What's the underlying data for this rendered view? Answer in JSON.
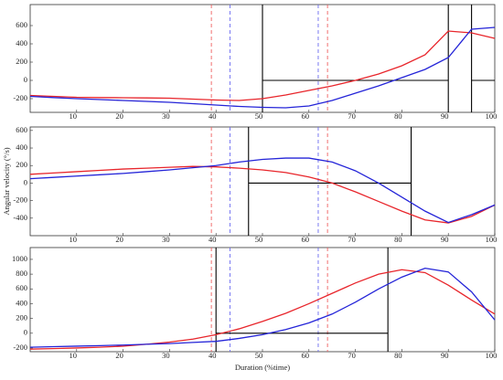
{
  "chart_data": [
    {
      "type": "line",
      "x": [
        0,
        5,
        10,
        15,
        20,
        25,
        30,
        35,
        40,
        45,
        50,
        55,
        60,
        65,
        70,
        75,
        80,
        85,
        90,
        95,
        100
      ],
      "series": [
        {
          "color": "#e8252b",
          "values": [
            -165,
            -175,
            -185,
            -188,
            -190,
            -192,
            -195,
            -205,
            -215,
            -220,
            -200,
            -160,
            -110,
            -60,
            0,
            70,
            160,
            280,
            540,
            520,
            460
          ]
        },
        {
          "color": "#2424d8",
          "values": [
            -175,
            -188,
            -200,
            -210,
            -220,
            -230,
            -240,
            -255,
            -270,
            -285,
            -295,
            -300,
            -280,
            -220,
            -140,
            -60,
            30,
            120,
            250,
            560,
            580
          ]
        }
      ],
      "vlines": [
        {
          "x": 39,
          "color": "#f06060",
          "dashed": true
        },
        {
          "x": 64,
          "color": "#f06060",
          "dashed": true
        },
        {
          "x": 43,
          "color": "#6a6af0",
          "dashed": true
        },
        {
          "x": 62,
          "color": "#6a6af0",
          "dashed": true
        },
        {
          "x": 50,
          "color": "#000000",
          "dashed": false
        },
        {
          "x": 90,
          "color": "#000000",
          "dashed": false
        },
        {
          "x": 95,
          "color": "#000000",
          "dashed": false
        }
      ],
      "hsegments": [
        {
          "x": [
            50,
            90
          ],
          "y": 0
        },
        {
          "x": [
            95,
            100
          ],
          "y": 0
        }
      ],
      "xlim": [
        0,
        100
      ],
      "xticks": [
        10,
        20,
        30,
        40,
        50,
        60,
        70,
        80,
        90,
        100
      ],
      "ylim": [
        -350,
        830
      ],
      "yticks": [
        -200,
        0,
        200,
        400,
        600
      ]
    },
    {
      "type": "line",
      "ylabel": "Angular velocity (°/s)",
      "x": [
        0,
        5,
        10,
        15,
        20,
        25,
        30,
        35,
        40,
        45,
        50,
        55,
        60,
        65,
        70,
        75,
        80,
        85,
        90,
        95,
        100
      ],
      "series": [
        {
          "color": "#e8252b",
          "values": [
            100,
            115,
            130,
            145,
            160,
            170,
            180,
            190,
            185,
            170,
            150,
            120,
            70,
            0,
            -100,
            -210,
            -320,
            -420,
            -455,
            -380,
            -250
          ]
        },
        {
          "color": "#2424d8",
          "values": [
            50,
            65,
            80,
            95,
            110,
            130,
            150,
            175,
            200,
            240,
            270,
            285,
            285,
            240,
            140,
            0,
            -160,
            -320,
            -450,
            -360,
            -250
          ]
        }
      ],
      "vlines": [
        {
          "x": 39,
          "color": "#f06060",
          "dashed": true
        },
        {
          "x": 64,
          "color": "#f06060",
          "dashed": true
        },
        {
          "x": 43,
          "color": "#6a6af0",
          "dashed": true
        },
        {
          "x": 62,
          "color": "#6a6af0",
          "dashed": true
        },
        {
          "x": 47,
          "color": "#000000",
          "dashed": false
        },
        {
          "x": 82,
          "color": "#000000",
          "dashed": false
        }
      ],
      "hsegments": [
        {
          "x": [
            47,
            82
          ],
          "y": 0
        }
      ],
      "xlim": [
        0,
        100
      ],
      "xticks": [
        10,
        20,
        30,
        40,
        50,
        60,
        70,
        80,
        90,
        100
      ],
      "ylim": [
        -600,
        640
      ],
      "yticks": [
        -400,
        -200,
        0,
        200,
        400,
        600
      ]
    },
    {
      "type": "line",
      "xlabel": "Duration (%time)",
      "x": [
        0,
        5,
        10,
        15,
        20,
        25,
        30,
        35,
        40,
        45,
        50,
        55,
        60,
        65,
        70,
        75,
        80,
        85,
        90,
        95,
        100
      ],
      "series": [
        {
          "color": "#e8252b",
          "values": [
            -215,
            -208,
            -200,
            -190,
            -175,
            -150,
            -120,
            -80,
            -20,
            60,
            160,
            270,
            400,
            540,
            680,
            800,
            860,
            820,
            650,
            450,
            260
          ]
        },
        {
          "color": "#2424d8",
          "values": [
            -190,
            -182,
            -175,
            -168,
            -160,
            -150,
            -140,
            -125,
            -110,
            -70,
            -20,
            50,
            140,
            260,
            420,
            600,
            760,
            880,
            830,
            560,
            180
          ]
        }
      ],
      "vlines": [
        {
          "x": 39,
          "color": "#f06060",
          "dashed": true
        },
        {
          "x": 64,
          "color": "#f06060",
          "dashed": true
        },
        {
          "x": 43,
          "color": "#6a6af0",
          "dashed": true
        },
        {
          "x": 62,
          "color": "#6a6af0",
          "dashed": true
        },
        {
          "x": 40,
          "color": "#000000",
          "dashed": false
        },
        {
          "x": 77,
          "color": "#000000",
          "dashed": false
        }
      ],
      "hsegments": [
        {
          "x": [
            40,
            77
          ],
          "y": 0
        }
      ],
      "xlim": [
        0,
        100
      ],
      "xticks": [
        10,
        20,
        30,
        40,
        50,
        60,
        70,
        80,
        90,
        100
      ],
      "ylim": [
        -250,
        1160
      ],
      "yticks": [
        -200,
        0,
        200,
        400,
        600,
        800,
        1000
      ]
    }
  ]
}
